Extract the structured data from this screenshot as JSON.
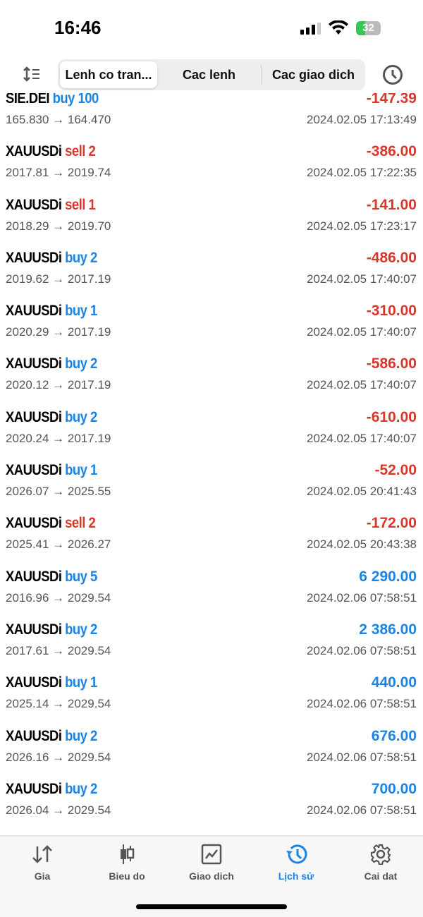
{
  "status": {
    "time": "16:46",
    "battery": "32"
  },
  "header": {
    "tabs": [
      {
        "label": "Lenh co tran..."
      },
      {
        "label": "Cac lenh"
      },
      {
        "label": "Cac giao dich"
      }
    ],
    "left_icon": "sort-icon",
    "right_icon": "clock-icon"
  },
  "colors": {
    "buy": "#1a84e6",
    "sell": "#d9372c",
    "accent": "#1a84e6"
  },
  "deals": [
    {
      "symbol": "SIE.DEI",
      "side": "buy",
      "volume": "100",
      "prices": "165.830 → 164.470",
      "profit": "-147.39",
      "time": "2024.02.05 17:13:49"
    },
    {
      "symbol": "XAUUSDi",
      "side": "sell",
      "volume": "2",
      "prices": "2017.81 → 2019.74",
      "profit": "-386.00",
      "time": "2024.02.05 17:22:35"
    },
    {
      "symbol": "XAUUSDi",
      "side": "sell",
      "volume": "1",
      "prices": "2018.29 → 2019.70",
      "profit": "-141.00",
      "time": "2024.02.05 17:23:17"
    },
    {
      "symbol": "XAUUSDi",
      "side": "buy",
      "volume": "2",
      "prices": "2019.62 → 2017.19",
      "profit": "-486.00",
      "time": "2024.02.05 17:40:07"
    },
    {
      "symbol": "XAUUSDi",
      "side": "buy",
      "volume": "1",
      "prices": "2020.29 → 2017.19",
      "profit": "-310.00",
      "time": "2024.02.05 17:40:07"
    },
    {
      "symbol": "XAUUSDi",
      "side": "buy",
      "volume": "2",
      "prices": "2020.12 → 2017.19",
      "profit": "-586.00",
      "time": "2024.02.05 17:40:07"
    },
    {
      "symbol": "XAUUSDi",
      "side": "buy",
      "volume": "2",
      "prices": "2020.24 → 2017.19",
      "profit": "-610.00",
      "time": "2024.02.05 17:40:07"
    },
    {
      "symbol": "XAUUSDi",
      "side": "buy",
      "volume": "1",
      "prices": "2026.07 → 2025.55",
      "profit": "-52.00",
      "time": "2024.02.05 20:41:43"
    },
    {
      "symbol": "XAUUSDi",
      "side": "sell",
      "volume": "2",
      "prices": "2025.41 → 2026.27",
      "profit": "-172.00",
      "time": "2024.02.05 20:43:38"
    },
    {
      "symbol": "XAUUSDi",
      "side": "buy",
      "volume": "5",
      "prices": "2016.96 → 2029.54",
      "profit": "6 290.00",
      "time": "2024.02.06 07:58:51"
    },
    {
      "symbol": "XAUUSDi",
      "side": "buy",
      "volume": "2",
      "prices": "2017.61 → 2029.54",
      "profit": "2 386.00",
      "time": "2024.02.06 07:58:51"
    },
    {
      "symbol": "XAUUSDi",
      "side": "buy",
      "volume": "1",
      "prices": "2025.14 → 2029.54",
      "profit": "440.00",
      "time": "2024.02.06 07:58:51"
    },
    {
      "symbol": "XAUUSDi",
      "side": "buy",
      "volume": "2",
      "prices": "2026.16 → 2029.54",
      "profit": "676.00",
      "time": "2024.02.06 07:58:51"
    },
    {
      "symbol": "XAUUSDi",
      "side": "buy",
      "volume": "2",
      "prices": "2026.04 → 2029.54",
      "profit": "700.00",
      "time": "2024.02.06 07:58:51"
    }
  ],
  "tabbar": [
    {
      "label": "Gia",
      "icon": "quotes-icon"
    },
    {
      "label": "Bieu do",
      "icon": "chart-icon"
    },
    {
      "label": "Giao dich",
      "icon": "trade-icon"
    },
    {
      "label": "Lịch sử",
      "icon": "history-icon",
      "active": true
    },
    {
      "label": "Cai dat",
      "icon": "settings-icon"
    }
  ]
}
